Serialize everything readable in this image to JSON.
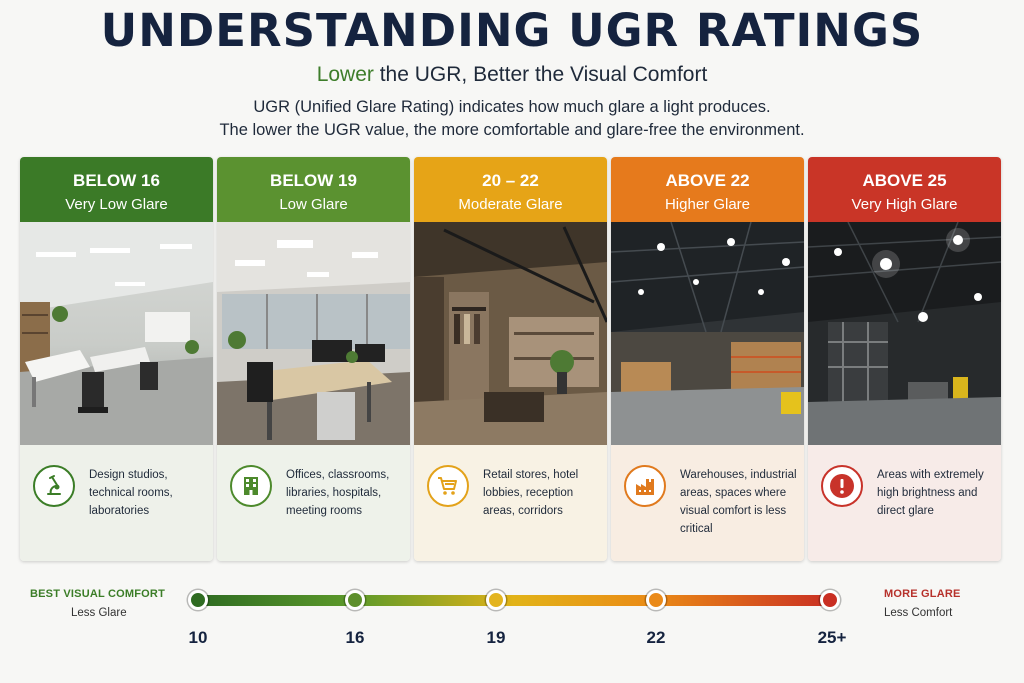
{
  "header": {
    "title": "UNDERSTANDING UGR RATINGS",
    "subtitle_accent": "Lower",
    "subtitle_rest": " the UGR, Better the Visual Comfort",
    "description_line1": "UGR (Unified Glare Rating) indicates how much glare a light produces.",
    "description_line2": "The lower the UGR value, the more comfortable and glare-free the environment."
  },
  "cards": [
    {
      "range": "BELOW 16",
      "level": "Very Low Glare",
      "color": "#3b7a27",
      "foot_bg": "#eef1ea",
      "icon": "microscope-icon",
      "icon_color": "#3b7d27",
      "usage": "Design studios, technical rooms, laboratories"
    },
    {
      "range": "BELOW 19",
      "level": "Low Glare",
      "color": "#5b9230",
      "foot_bg": "#eef2ea",
      "icon": "building-icon",
      "icon_color": "#4d8a2c",
      "usage": "Offices, classrooms, libraries, hospitals, meeting rooms"
    },
    {
      "range": "20 – 22",
      "level": "Moderate Glare",
      "color": "#e6a417",
      "foot_bg": "#f8f2e4",
      "icon": "shopping-cart-icon",
      "icon_color": "#e3a21a",
      "usage": "Retail stores, hotel lobbies, reception areas, corridors"
    },
    {
      "range": "ABOVE 22",
      "level": "Higher Glare",
      "color": "#e67a1c",
      "foot_bg": "#f8ede2",
      "icon": "factory-icon",
      "icon_color": "#e07a1e",
      "usage": "Warehouses, industrial areas, spaces where visual comfort is less critical"
    },
    {
      "range": "ABOVE 25",
      "level": "Very High Glare",
      "color": "#c93527",
      "foot_bg": "#f7ebe8",
      "icon": "warning-icon",
      "icon_color": "#c8332a",
      "usage": "Areas with extremely high brightness and direct glare"
    }
  ],
  "scale": {
    "left_title": "BEST VISUAL COMFORT",
    "left_sub": "Less Glare",
    "right_title": "MORE GLARE",
    "right_sub": "Less Comfort",
    "ticks": [
      "10",
      "16",
      "19",
      "22",
      "25+"
    ],
    "dot_colors": [
      "#2f6b22",
      "#5d8f2c",
      "#e3b420",
      "#ea8a1a",
      "#c92f23"
    ]
  }
}
